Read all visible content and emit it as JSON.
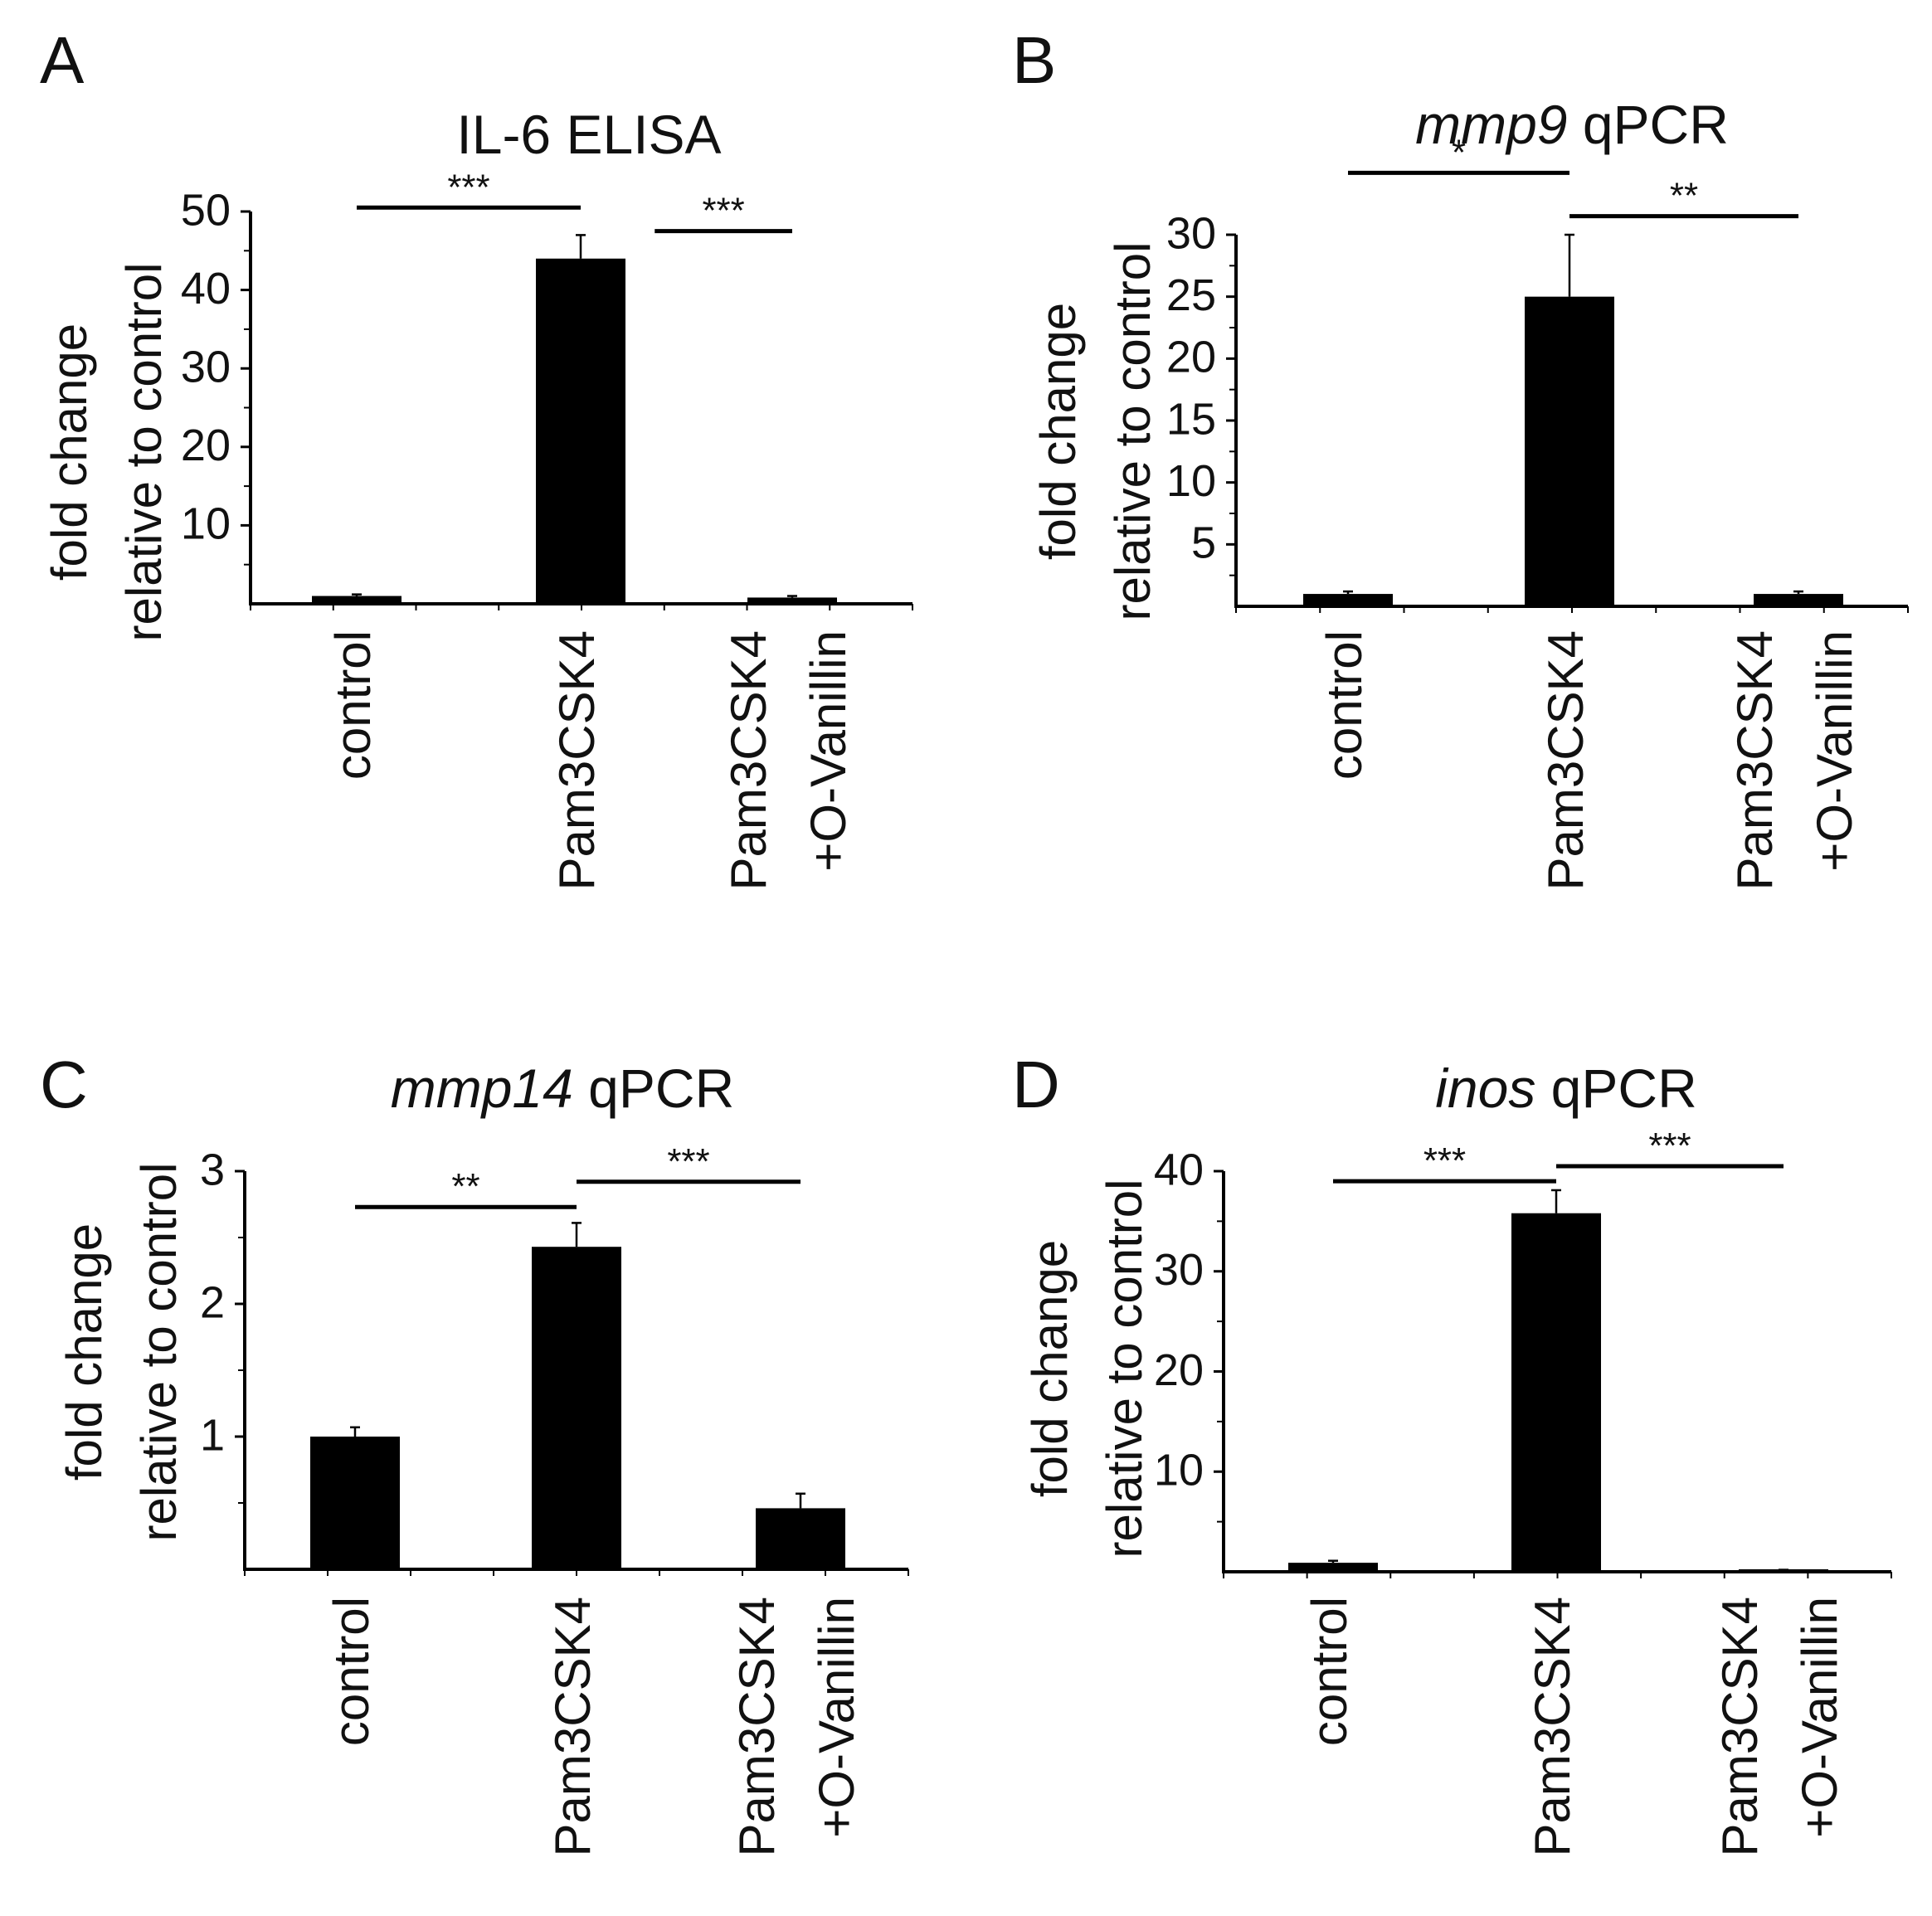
{
  "colors": {
    "bar": "#000000",
    "axis": "#000000",
    "text": "#111111"
  },
  "chart_data": [
    {
      "panel": "A",
      "type": "bar",
      "title": "IL-6 ELISA",
      "title_parts": [
        {
          "text": "IL-6 ELISA",
          "italic": false
        }
      ],
      "ylabel": [
        "fold change",
        "relative to control"
      ],
      "categories": [
        [
          "control"
        ],
        [
          "Pam3CSK4"
        ],
        [
          "Pam3CSK4",
          "+O-Vanillin"
        ]
      ],
      "values": [
        1,
        44,
        0.8
      ],
      "errors": [
        0.2,
        3,
        0.2
      ],
      "ylim": [
        0,
        55
      ],
      "yticks": [
        10,
        20,
        30,
        40,
        50
      ],
      "significance": [
        {
          "label": "***",
          "from": 0,
          "to": 1,
          "y": 50.5
        },
        {
          "label": "***",
          "from": 1.35,
          "to": 2,
          "y": 47.5
        }
      ]
    },
    {
      "panel": "B",
      "type": "bar",
      "title": "mmp9 qPCR",
      "title_parts": [
        {
          "text": "mmp9",
          "italic": true
        },
        {
          "text": " qPCR",
          "italic": false
        }
      ],
      "ylabel": [
        "fold change",
        "relative to control"
      ],
      "categories": [
        [
          "control"
        ],
        [
          "Pam3CSK4"
        ],
        [
          "Pam3CSK4",
          "+O-Vanillin"
        ]
      ],
      "values": [
        1,
        25,
        1
      ],
      "errors": [
        0.2,
        5,
        0.2
      ],
      "ylim": [
        0,
        35
      ],
      "yticks": [
        5,
        10,
        15,
        20,
        25,
        30
      ],
      "significance": [
        {
          "label": "*",
          "from": 0,
          "to": 1,
          "y": 35
        },
        {
          "label": "**",
          "from": 1,
          "to": 2,
          "y": 31.5
        }
      ]
    },
    {
      "panel": "C",
      "type": "bar",
      "title": "mmp14 qPCR",
      "title_parts": [
        {
          "text": "mmp14",
          "italic": true
        },
        {
          "text": " qPCR",
          "italic": false
        }
      ],
      "ylabel": [
        "fold change",
        "relative to control"
      ],
      "categories": [
        [
          "control"
        ],
        [
          "Pam3CSK4"
        ],
        [
          "Pam3CSK4",
          "+O-Vanillin"
        ]
      ],
      "values": [
        1,
        2.43,
        0.46
      ],
      "errors": [
        0.07,
        0.18,
        0.11
      ],
      "ylim": [
        0,
        3
      ],
      "yticks": [
        1,
        2,
        3
      ],
      "significance": [
        {
          "label": "**",
          "from": 0,
          "to": 1,
          "y": 2.73
        },
        {
          "label": "***",
          "from": 1,
          "to": 2,
          "y": 2.92
        }
      ]
    },
    {
      "panel": "D",
      "type": "bar",
      "title": "inos qPCR",
      "title_parts": [
        {
          "text": "inos",
          "italic": true
        },
        {
          "text": " qPCR",
          "italic": false
        }
      ],
      "ylabel": [
        "fold change",
        "relative to control"
      ],
      "categories": [
        [
          "control"
        ],
        [
          "Pam3CSK4"
        ],
        [
          "Pam3CSK4",
          "+O-Vanillin"
        ]
      ],
      "values": [
        0.9,
        35.8,
        0.1
      ],
      "errors": [
        0.2,
        2.3,
        0.1
      ],
      "ylim": [
        0,
        40
      ],
      "yticks": [
        10,
        20,
        30,
        40
      ],
      "significance": [
        {
          "label": "***",
          "from": 0,
          "to": 1,
          "y": 39
        },
        {
          "label": "***",
          "from": 1,
          "to": 2,
          "y": 40.5
        }
      ]
    }
  ]
}
